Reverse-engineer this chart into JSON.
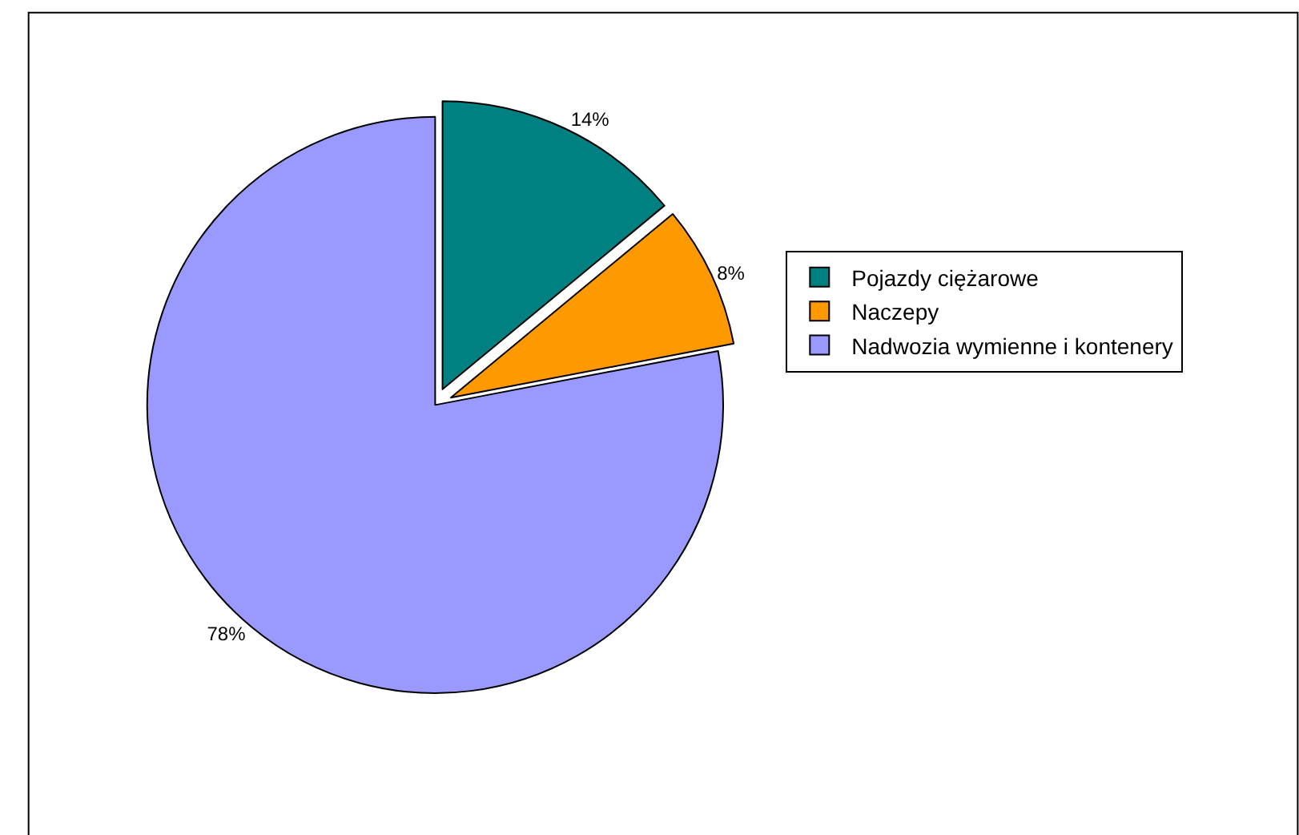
{
  "chart_data": {
    "type": "pie",
    "categories": [
      "Pojazdy ciężarowe",
      "Naczepy",
      "Nadwozia wymienne i kontenery"
    ],
    "values": [
      14,
      8,
      78
    ],
    "colors": [
      "#008080",
      "#ff9900",
      "#9999ff"
    ],
    "value_labels": [
      "14%",
      "8%",
      "78%"
    ],
    "legend": "right"
  }
}
